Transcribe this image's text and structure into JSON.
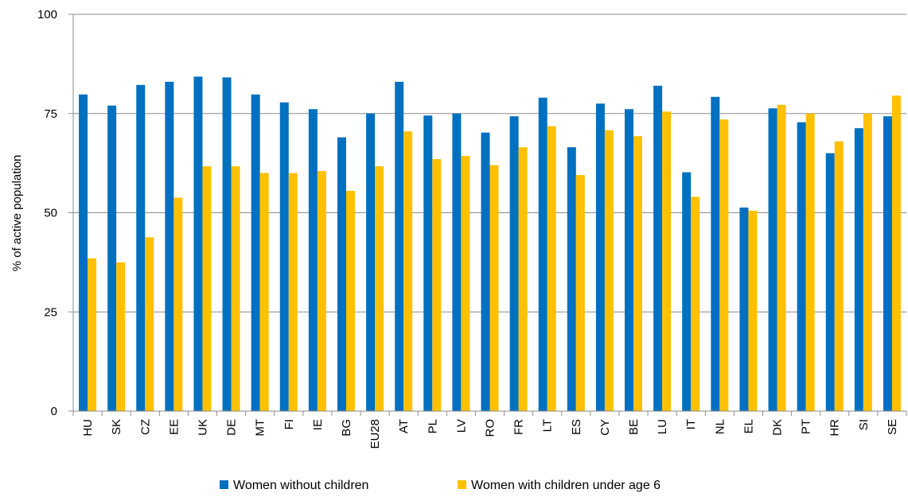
{
  "chart_data": {
    "type": "bar",
    "title": "",
    "xlabel": "",
    "ylabel": "% of active population",
    "ylim": [
      0,
      100
    ],
    "yticks": [
      0,
      25,
      50,
      75,
      100
    ],
    "grid": true,
    "legend_position": "bottom",
    "categories": [
      "HU",
      "SK",
      "CZ",
      "EE",
      "UK",
      "DE",
      "MT",
      "FI",
      "IE",
      "BG",
      "EU28",
      "AT",
      "PL",
      "LV",
      "RO",
      "FR",
      "LT",
      "ES",
      "CY",
      "BE",
      "LU",
      "IT",
      "NL",
      "EL",
      "DK",
      "PT",
      "HR",
      "SI",
      "SE"
    ],
    "series": [
      {
        "name": "Women without children",
        "color": "#0070C0",
        "values": [
          79.8,
          77.0,
          82.2,
          83.0,
          84.3,
          84.1,
          79.8,
          77.8,
          76.1,
          69.0,
          75.0,
          83.0,
          74.5,
          75.0,
          70.2,
          74.3,
          79.0,
          66.5,
          77.5,
          76.1,
          82.0,
          60.2,
          79.2,
          51.3,
          76.3,
          72.8,
          65.0,
          71.3,
          74.3
        ]
      },
      {
        "name": "Women with children under age 6",
        "color": "#FFC000",
        "values": [
          38.5,
          37.5,
          43.8,
          53.8,
          61.7,
          61.7,
          60.0,
          60.0,
          60.5,
          55.5,
          61.7,
          70.5,
          63.5,
          64.3,
          62.0,
          66.5,
          71.8,
          59.5,
          70.8,
          69.3,
          75.5,
          54.0,
          73.5,
          50.5,
          77.2,
          75.0,
          68.0,
          75.0,
          79.5
        ]
      }
    ]
  }
}
